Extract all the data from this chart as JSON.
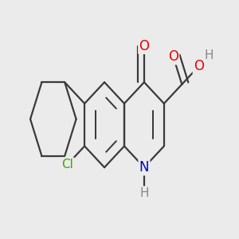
{
  "bg_color": "#ebebeb",
  "bond_color": "#3a3a3a",
  "bond_width": 1.6,
  "atom_colors": {
    "O": "#ee0000",
    "N": "#0000cc",
    "Cl": "#33aa00",
    "H": "#888888",
    "C": "#3a3a3a"
  },
  "font_size": 11.5
}
